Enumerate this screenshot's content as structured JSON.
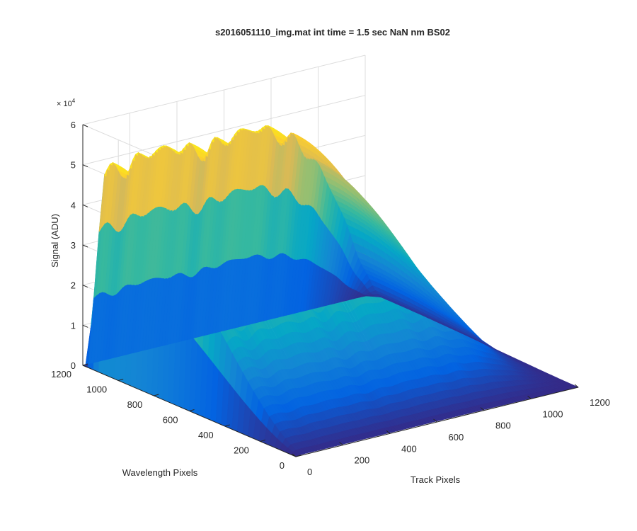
{
  "chart_data": {
    "type": "surface",
    "title": "s2016051110_img.mat int time = 1.5 sec  NaN nm BS02",
    "xlabel": "Track Pixels",
    "ylabel": "Wavelength Pixels",
    "zlabel": "Signal (ADU)",
    "z_exponent_label": "× 10",
    "z_exponent_power": "4",
    "xlim": [
      0,
      1200
    ],
    "ylim": [
      0,
      1200
    ],
    "zlim": [
      0,
      60000
    ],
    "x_ticks": [
      "0",
      "200",
      "400",
      "600",
      "800",
      "1000",
      "1200"
    ],
    "y_ticks": [
      "0",
      "200",
      "400",
      "600",
      "800",
      "1000",
      "1200"
    ],
    "z_ticks": [
      "0",
      "1",
      "2",
      "3",
      "4",
      "5",
      "6"
    ],
    "grid": true,
    "colormap": "parula",
    "colormap_stops": [
      "#352a87",
      "#0363e1",
      "#1485d4",
      "#06a7c6",
      "#38b99e",
      "#92bf73",
      "#d9ba56",
      "#fcce2e",
      "#f9fb0e"
    ],
    "track_peak_signal": [
      {
        "track": 20,
        "signal": 51000
      },
      {
        "track": 100,
        "signal": 52000
      },
      {
        "track": 200,
        "signal": 52500
      },
      {
        "track": 280,
        "signal": 52500
      },
      {
        "track": 320,
        "signal": 52000
      },
      {
        "track": 420,
        "signal": 51500
      },
      {
        "track": 500,
        "signal": 51500
      },
      {
        "track": 600,
        "signal": 52000
      },
      {
        "track": 700,
        "signal": 51500
      },
      {
        "track": 780,
        "signal": 50000
      },
      {
        "track": 860,
        "signal": 46000
      },
      {
        "track": 940,
        "signal": 38000
      },
      {
        "track": 1000,
        "signal": 30000
      },
      {
        "track": 1060,
        "signal": 21000
      },
      {
        "track": 1120,
        "signal": 11000
      },
      {
        "track": 1170,
        "signal": 4000
      },
      {
        "track": 1200,
        "signal": 1500
      }
    ]
  }
}
